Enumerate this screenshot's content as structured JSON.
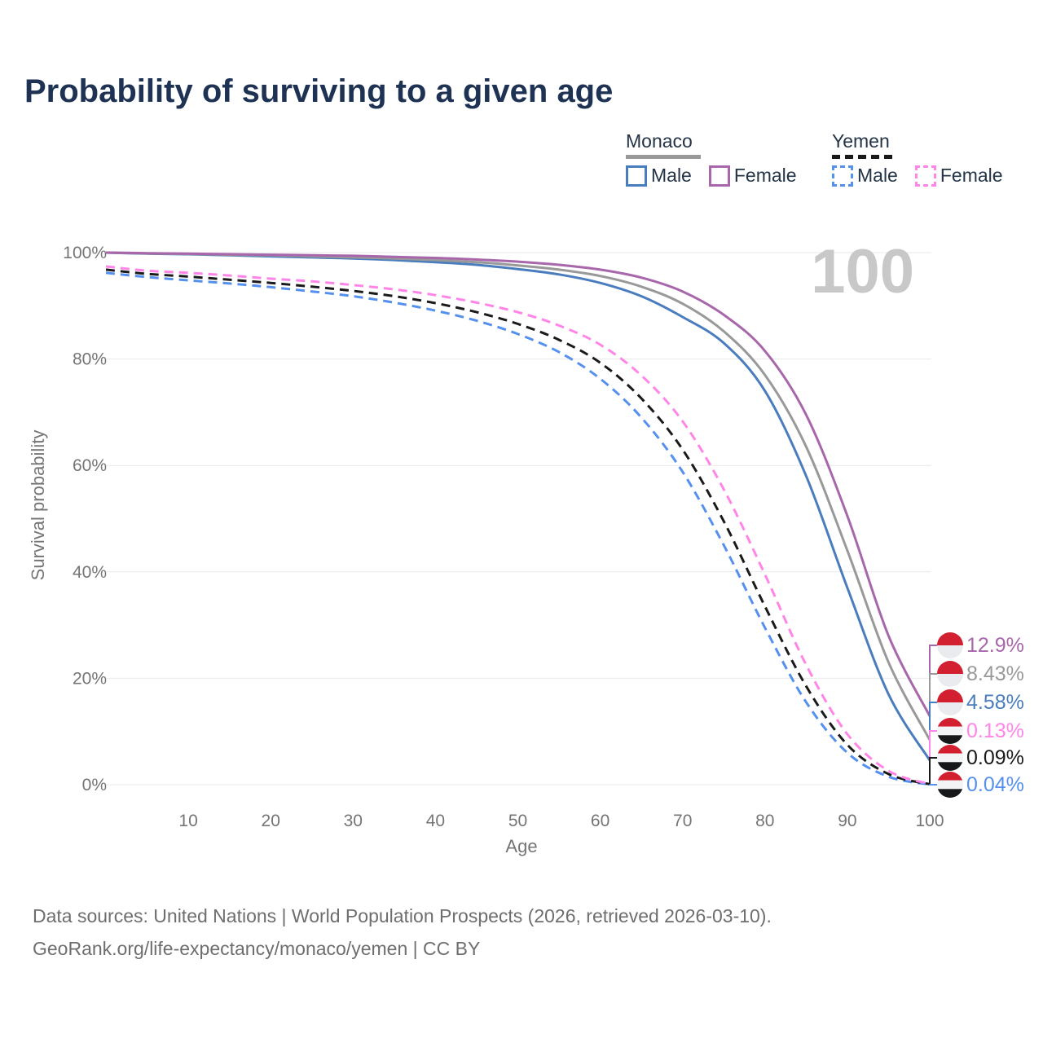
{
  "title": "Probability of surviving to a given age",
  "watermark_age": "100",
  "legend": {
    "groups": [
      {
        "country": "Monaco",
        "line_style": "solid",
        "line_color": "#999999",
        "items": [
          {
            "label": "Male",
            "color": "#4a7dbd",
            "dashed": false
          },
          {
            "label": "Female",
            "color": "#a866ab",
            "dashed": false
          }
        ]
      },
      {
        "country": "Yemen",
        "line_style": "dashed",
        "line_color": "#1a1a1a",
        "items": [
          {
            "label": "Male",
            "color": "#5590ee",
            "dashed": true
          },
          {
            "label": "Female",
            "color": "#ff85e8",
            "dashed": true
          }
        ]
      }
    ]
  },
  "chart_data": {
    "type": "line",
    "title": "Probability of surviving to a given age",
    "xlabel": "Age",
    "ylabel": "Survival probability",
    "xlim": [
      0,
      100
    ],
    "ylim": [
      0,
      100
    ],
    "grid": "horizontal-only",
    "legend_position": "top-right",
    "age_cursor_watermark": "100",
    "x_ticks": [
      10,
      20,
      30,
      40,
      50,
      60,
      70,
      80,
      90,
      100
    ],
    "y_ticks": {
      "values": [
        0,
        20,
        40,
        60,
        80,
        100
      ],
      "labels": [
        "0%",
        "20%",
        "40%",
        "60%",
        "80%",
        "100%"
      ]
    },
    "x": [
      0,
      5,
      10,
      15,
      20,
      25,
      30,
      35,
      40,
      45,
      50,
      55,
      60,
      65,
      70,
      75,
      80,
      85,
      90,
      95,
      100
    ],
    "series": [
      {
        "name": "Monaco Female",
        "country": "Monaco",
        "sex": "Female",
        "color": "#a866ab",
        "dashed": false,
        "flag": "monaco",
        "end_label": "12.9%",
        "values": [
          100,
          99.9,
          99.8,
          99.7,
          99.6,
          99.5,
          99.4,
          99.2,
          99.0,
          98.7,
          98.3,
          97.7,
          96.8,
          95.3,
          92.7,
          88.3,
          81.5,
          69.5,
          50.5,
          28.0,
          12.9
        ]
      },
      {
        "name": "Monaco Both sexes",
        "country": "Monaco",
        "sex": "Both",
        "color": "#999999",
        "dashed": false,
        "flag": "monaco",
        "end_label": "8.43%",
        "values": [
          100,
          99.85,
          99.75,
          99.6,
          99.5,
          99.3,
          99.1,
          98.9,
          98.6,
          98.2,
          97.6,
          96.8,
          95.6,
          93.6,
          90.4,
          85.2,
          77.0,
          63.5,
          44.0,
          23.0,
          8.43
        ]
      },
      {
        "name": "Monaco Male",
        "country": "Monaco",
        "sex": "Male",
        "color": "#4a7dbd",
        "dashed": false,
        "flag": "monaco",
        "end_label": "4.58%",
        "values": [
          100,
          99.8,
          99.7,
          99.5,
          99.3,
          99.1,
          98.9,
          98.6,
          98.2,
          97.7,
          96.9,
          95.9,
          94.3,
          91.8,
          87.9,
          83.0,
          74.0,
          58.0,
          37.0,
          17.0,
          4.58
        ]
      },
      {
        "name": "Yemen Female",
        "country": "Yemen",
        "sex": "Female",
        "color": "#ff85e8",
        "dashed": true,
        "flag": "yemen",
        "end_label": "0.13%",
        "values": [
          97.4,
          96.6,
          96.2,
          95.7,
          95.1,
          94.6,
          93.9,
          93.1,
          92.0,
          90.6,
          88.8,
          86.3,
          82.7,
          76.9,
          68.3,
          55.5,
          39.5,
          22.5,
          9.5,
          2.6,
          0.13
        ]
      },
      {
        "name": "Yemen Both sexes",
        "country": "Yemen",
        "sex": "Both",
        "color": "#1a1a1a",
        "dashed": true,
        "flag": "yemen",
        "end_label": "0.09%",
        "values": [
          96.8,
          96.0,
          95.5,
          94.9,
          94.3,
          93.6,
          92.8,
          91.8,
          90.5,
          88.8,
          86.6,
          83.6,
          79.3,
          72.6,
          63.0,
          49.5,
          33.5,
          18.5,
          7.5,
          2.0,
          0.09
        ]
      },
      {
        "name": "Yemen Male",
        "country": "Yemen",
        "sex": "Male",
        "color": "#5590ee",
        "dashed": true,
        "flag": "yemen",
        "end_label": "0.04%",
        "values": [
          96.2,
          95.4,
          94.8,
          94.2,
          93.5,
          92.7,
          91.8,
          90.6,
          89.1,
          87.2,
          84.7,
          81.3,
          76.3,
          69.0,
          58.8,
          45.0,
          29.5,
          15.5,
          6.0,
          1.5,
          0.04
        ]
      }
    ],
    "flag_colors": {
      "monaco": {
        "top_red": "#d22030",
        "bottom_white": "#e9ebee"
      },
      "yemen": {
        "red": "#d22030",
        "white": "#f3f4f6",
        "black": "#17181a"
      }
    }
  },
  "footer": {
    "line1": "Data sources: United Nations | World Population Prospects (2026, retrieved 2026-03-10).",
    "line2": "GeoRank.org/life-expectancy/monaco/yemen | CC BY"
  }
}
